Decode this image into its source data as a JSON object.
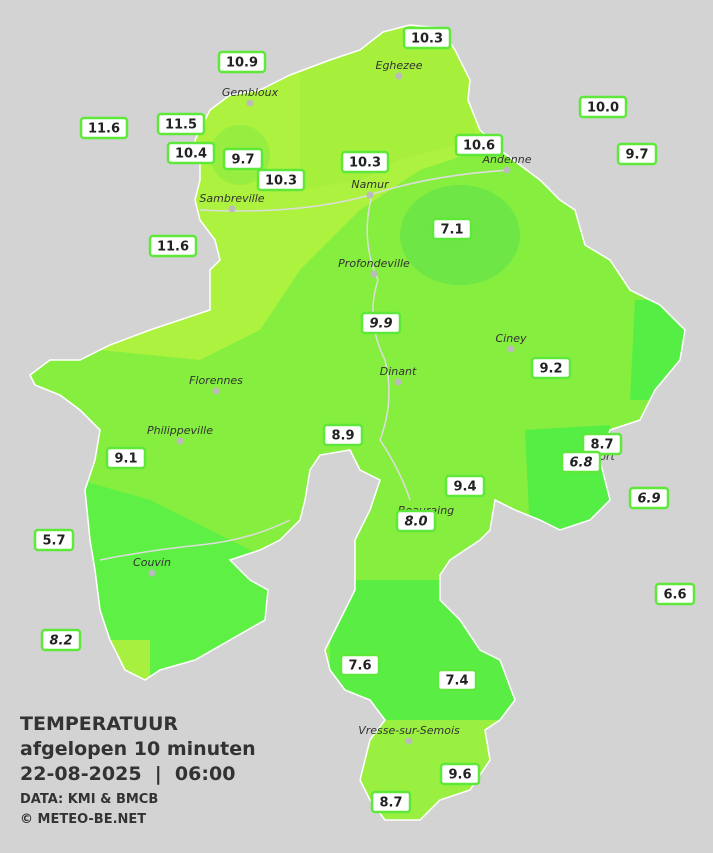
{
  "stations": [
    {
      "value": "10.3"
    },
    {
      "value": "10.9"
    },
    {
      "value": "10.0"
    },
    {
      "value": "11.6"
    },
    {
      "value": "11.5"
    },
    {
      "value": "10.4"
    },
    {
      "value": "9.7"
    },
    {
      "value": "10.6"
    },
    {
      "value": "9.7"
    },
    {
      "value": "10.3"
    },
    {
      "value": "10.3"
    },
    {
      "value": "7.1"
    },
    {
      "value": "11.6"
    },
    {
      "value": "9.9"
    },
    {
      "value": "9.2"
    },
    {
      "value": "8.9"
    },
    {
      "value": "8.7"
    },
    {
      "value": "6.8"
    },
    {
      "value": "9.1"
    },
    {
      "value": "9.4"
    },
    {
      "value": "6.9"
    },
    {
      "value": "8.0"
    },
    {
      "value": "5.7"
    },
    {
      "value": "6.6"
    },
    {
      "value": "8.2"
    },
    {
      "value": "7.6"
    },
    {
      "value": "7.4"
    },
    {
      "value": "9.6"
    },
    {
      "value": "8.7"
    }
  ],
  "cities": [
    {
      "name": "Eghezee"
    },
    {
      "name": "Gembloux"
    },
    {
      "name": "Andenne"
    },
    {
      "name": "Namur"
    },
    {
      "name": "Sambreville"
    },
    {
      "name": "Profondeville"
    },
    {
      "name": "Ciney"
    },
    {
      "name": "Dinant"
    },
    {
      "name": "Florennes"
    },
    {
      "name": "Philippeville"
    },
    {
      "name": "Rochefort"
    },
    {
      "name": "Beauraing"
    },
    {
      "name": "Couvin"
    },
    {
      "name": "Vresse-sur-Semois"
    }
  ],
  "legend": {
    "title": "TEMPERATUUR",
    "subtitle": "afgelopen 10 minuten",
    "datetime": "22-08-2025  |  06:00",
    "source": "DATA: KMI & BMCB",
    "copyright": "© METEO-BE.NET"
  }
}
